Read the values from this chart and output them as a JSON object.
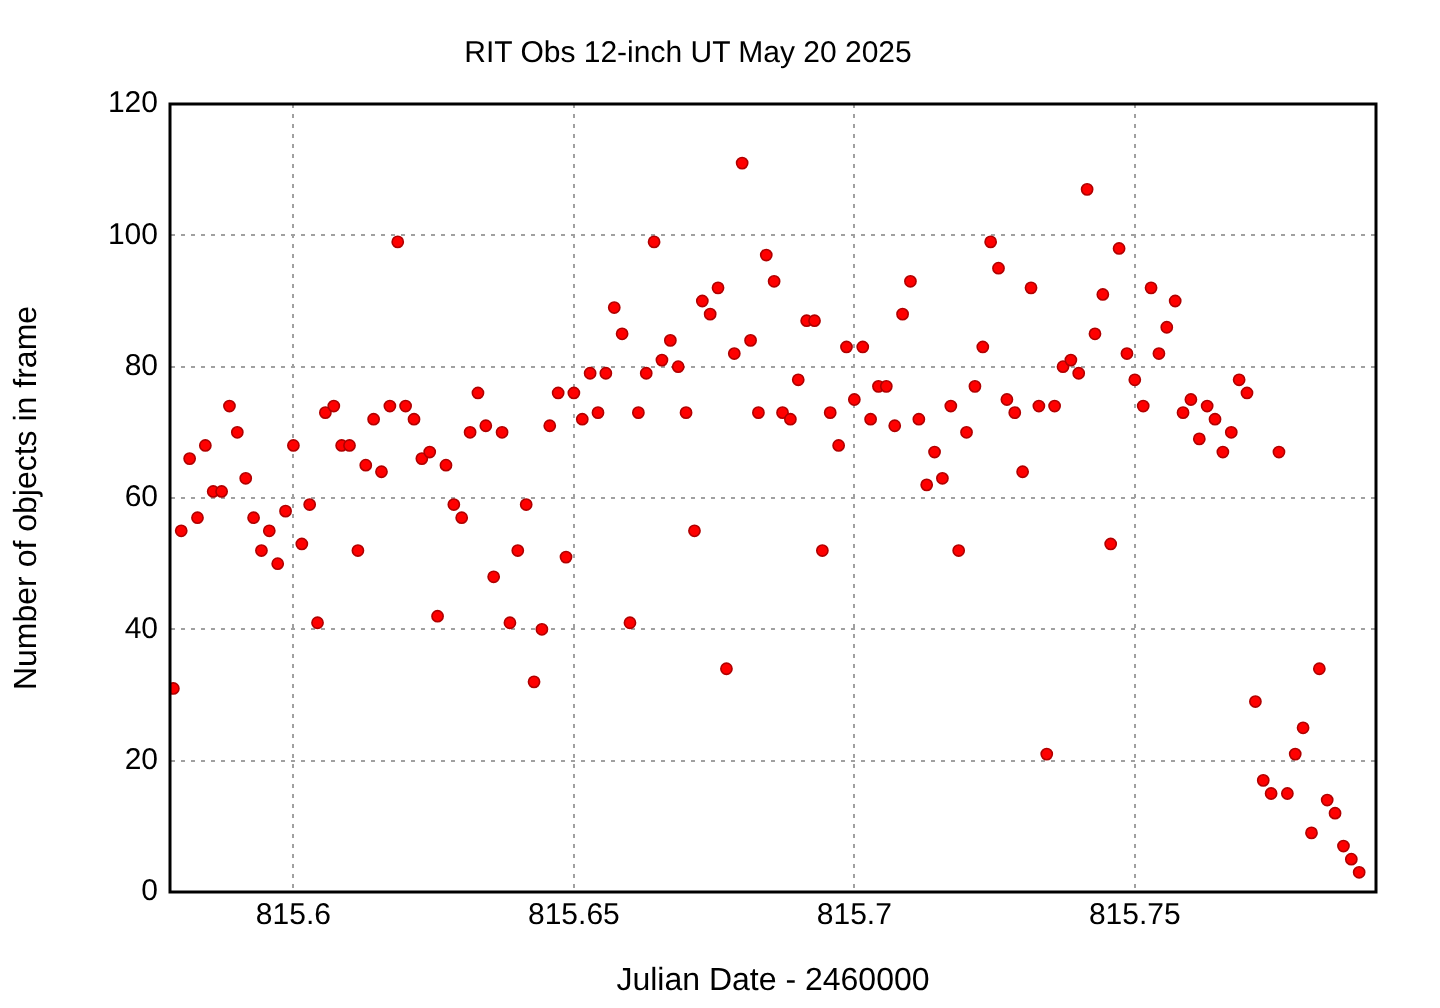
{
  "chart_data": {
    "type": "scatter",
    "title": "RIT Obs 12-inch UT May 20 2025",
    "xlabel": "Julian Date - 2460000",
    "ylabel": "Number of objects in frame",
    "xlim": [
      815.578,
      815.793
    ],
    "xticks": [
      815.6,
      815.65,
      815.7,
      815.75
    ],
    "ylim": [
      0,
      120
    ],
    "yticks": [
      0,
      20,
      40,
      60,
      80,
      100,
      120
    ],
    "grid": true,
    "marker": "circle",
    "series": [
      {
        "color": "#ff0000",
        "x": [
          815.5786,
          815.58,
          815.5815,
          815.5829,
          815.5843,
          815.5857,
          815.5872,
          815.5886,
          815.59,
          815.5915,
          815.5929,
          815.5943,
          815.5957,
          815.5972,
          815.5986,
          815.6,
          815.6015,
          815.6029,
          815.6043,
          815.6057,
          815.6072,
          815.6086,
          815.61,
          815.6115,
          815.6129,
          815.6143,
          815.6157,
          815.6172,
          815.6186,
          815.62,
          815.6215,
          815.6229,
          815.6243,
          815.6257,
          815.6272,
          815.6286,
          815.63,
          815.6315,
          815.6329,
          815.6343,
          815.6357,
          815.6372,
          815.6386,
          815.64,
          815.6415,
          815.6429,
          815.6443,
          815.6457,
          815.6472,
          815.6486,
          815.65,
          815.6515,
          815.6529,
          815.6543,
          815.6557,
          815.6572,
          815.6586,
          815.66,
          815.6615,
          815.6629,
          815.6643,
          815.6657,
          815.6672,
          815.6686,
          815.67,
          815.6715,
          815.6729,
          815.6743,
          815.6757,
          815.6772,
          815.6786,
          815.68,
          815.6815,
          815.6829,
          815.6843,
          815.6857,
          815.6872,
          815.6886,
          815.69,
          815.6915,
          815.6929,
          815.6943,
          815.6957,
          815.6972,
          815.6986,
          815.7,
          815.7015,
          815.7029,
          815.7043,
          815.7057,
          815.7072,
          815.7086,
          815.71,
          815.7115,
          815.7129,
          815.7143,
          815.7157,
          815.7172,
          815.7186,
          815.72,
          815.7215,
          815.7229,
          815.7243,
          815.7257,
          815.7272,
          815.7286,
          815.73,
          815.7315,
          815.7329,
          815.7343,
          815.7357,
          815.7372,
          815.7386,
          815.74,
          815.7415,
          815.7429,
          815.7443,
          815.7457,
          815.7472,
          815.7486,
          815.75,
          815.7515,
          815.7529,
          815.7543,
          815.7557,
          815.7572,
          815.7586,
          815.76,
          815.7615,
          815.7629,
          815.7643,
          815.7657,
          815.7672,
          815.7686,
          815.77,
          815.7715,
          815.7729,
          815.7743,
          815.7757,
          815.7772,
          815.7786,
          815.78,
          815.7815,
          815.7829,
          815.7843,
          815.7857,
          815.7872,
          815.7886,
          815.79
        ],
        "values": [
          31,
          55,
          66,
          57,
          68,
          61,
          61,
          74,
          70,
          63,
          57,
          52,
          55,
          50,
          58,
          68,
          53,
          59,
          41,
          73,
          74,
          68,
          68,
          52,
          65,
          72,
          64,
          74,
          99,
          74,
          72,
          66,
          67,
          42,
          65,
          59,
          57,
          70,
          76,
          71,
          48,
          70,
          41,
          52,
          59,
          32,
          40,
          71,
          76,
          51,
          76,
          72,
          79,
          73,
          79,
          89,
          85,
          41,
          73,
          79,
          99,
          81,
          84,
          80,
          73,
          55,
          90,
          88,
          92,
          34,
          82,
          111,
          84,
          73,
          97,
          93,
          73,
          72,
          78,
          87,
          87,
          52,
          73,
          68,
          83,
          75,
          83,
          72,
          77,
          77,
          71,
          88,
          93,
          72,
          62,
          67,
          63,
          74,
          52,
          70,
          77,
          83,
          99,
          95,
          75,
          73,
          64,
          92,
          74,
          21,
          74,
          80,
          81,
          79,
          107,
          85,
          91,
          53,
          98,
          82,
          78,
          74,
          92,
          82,
          86,
          90,
          73,
          75,
          69,
          74,
          72,
          67,
          70,
          78,
          76,
          29,
          17,
          15,
          67,
          15,
          21,
          25,
          9,
          34,
          14,
          12,
          7,
          5,
          3
        ]
      }
    ]
  }
}
